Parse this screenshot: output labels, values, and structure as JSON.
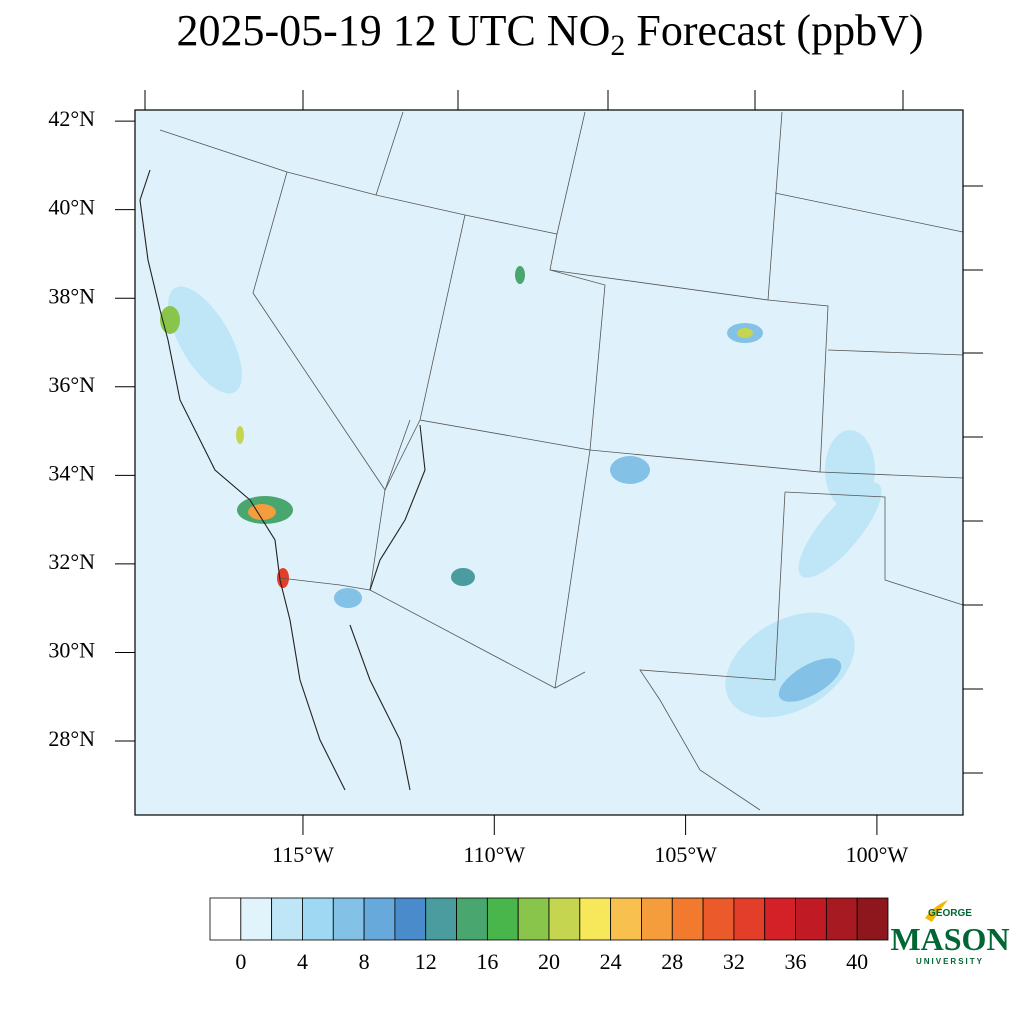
{
  "title": {
    "main": "2025-05-19 12 UTC NO",
    "subscript": "2",
    "rest": " Forecast (ppbV)"
  },
  "map": {
    "type": "map",
    "background": "#dff2fb",
    "xlim": [
      -119.39,
      -97.75
    ],
    "ylim": [
      26.33,
      42.25
    ],
    "xticks": [
      {
        "value": -115,
        "label": "115°W"
      },
      {
        "value": -110,
        "label": "110°W"
      },
      {
        "value": -105,
        "label": "105°W"
      },
      {
        "value": -100,
        "label": "100°W"
      }
    ],
    "yticks": [
      {
        "value": 28,
        "label": "28°N"
      },
      {
        "value": 30,
        "label": "30°N"
      },
      {
        "value": 32,
        "label": "32°N"
      },
      {
        "value": 34,
        "label": "34°N"
      },
      {
        "value": 36,
        "label": "36°N"
      },
      {
        "value": 38,
        "label": "38°N"
      },
      {
        "value": 40,
        "label": "40°N"
      },
      {
        "value": 42,
        "label": "42°N"
      }
    ]
  },
  "colorbar": {
    "levels": [
      0,
      2,
      4,
      6,
      8,
      10,
      12,
      14,
      16,
      18,
      20,
      22,
      24,
      26,
      28,
      30,
      32,
      34,
      36,
      38,
      40
    ],
    "colors": [
      "#ffffff",
      "#e1f3fb",
      "#bfe6f7",
      "#9ed8f2",
      "#84c1e6",
      "#68a9dc",
      "#4a8ccb",
      "#4b9c9e",
      "#4aa66f",
      "#48b64a",
      "#88c54a",
      "#c5d54f",
      "#f7e75a",
      "#f8c04f",
      "#f59c3c",
      "#f17a2e",
      "#ea5a2a",
      "#e23e2a",
      "#d42027",
      "#c01a24",
      "#a81a22",
      "#8d171c"
    ],
    "ticks": [
      0,
      4,
      8,
      12,
      16,
      20,
      24,
      28,
      32,
      36,
      40
    ]
  },
  "logo": {
    "top": "GEORGE",
    "name": "MASON",
    "bottom": "UNIVERSITY"
  }
}
